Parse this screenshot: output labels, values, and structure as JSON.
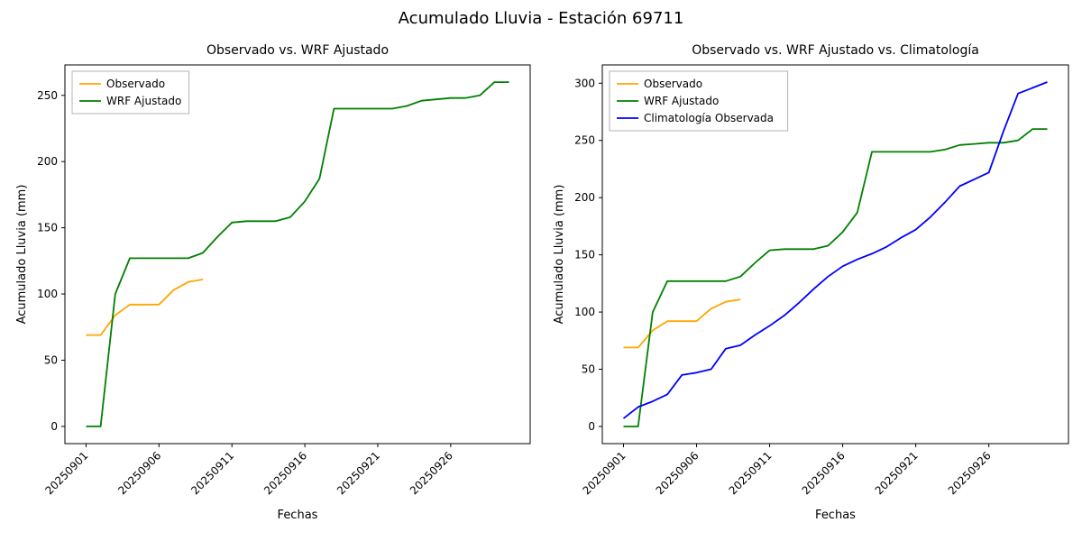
{
  "figure": {
    "title": "Acumulado Lluvia - Estación 69711"
  },
  "chart_data": [
    {
      "type": "line",
      "title": "Observado vs. WRF Ajustado",
      "xlabel": "Fechas",
      "ylabel": "Acumulado Lluvia (mm)",
      "grid": false,
      "legend_position": "upper left",
      "categories": [
        "20250901",
        "20250902",
        "20250903",
        "20250904",
        "20250905",
        "20250906",
        "20250907",
        "20250908",
        "20250909",
        "20250910",
        "20250911",
        "20250912",
        "20250913",
        "20250914",
        "20250915",
        "20250916",
        "20250917",
        "20250918",
        "20250919",
        "20250920",
        "20250921",
        "20250922",
        "20250923",
        "20250924",
        "20250925",
        "20250926",
        "20250927",
        "20250928",
        "20250929",
        "20250930"
      ],
      "xtick_indices": [
        0,
        5,
        10,
        15,
        20,
        25
      ],
      "yticks": [
        0,
        50,
        100,
        150,
        200,
        250
      ],
      "ylim": [
        -13,
        273
      ],
      "series": [
        {
          "name": "Observado",
          "color": "#FFA500",
          "values": [
            69,
            69,
            84,
            92,
            92,
            92,
            103,
            109,
            111
          ]
        },
        {
          "name": "WRF Ajustado",
          "color": "#008000",
          "values": [
            0,
            0,
            100,
            127,
            127,
            127,
            127,
            127,
            131,
            143,
            154,
            155,
            155,
            155,
            158,
            170,
            187,
            240,
            240,
            240,
            240,
            240,
            242,
            246,
            247,
            248,
            248,
            250,
            260,
            260
          ]
        }
      ]
    },
    {
      "type": "line",
      "title": "Observado vs. WRF Ajustado vs. Climatología",
      "xlabel": "Fechas",
      "ylabel": "Acumulado Lluvia (mm)",
      "grid": false,
      "legend_position": "upper left",
      "categories": [
        "20250901",
        "20250902",
        "20250903",
        "20250904",
        "20250905",
        "20250906",
        "20250907",
        "20250908",
        "20250909",
        "20250910",
        "20250911",
        "20250912",
        "20250913",
        "20250914",
        "20250915",
        "20250916",
        "20250917",
        "20250918",
        "20250919",
        "20250920",
        "20250921",
        "20250922",
        "20250923",
        "20250924",
        "20250925",
        "20250926",
        "20250927",
        "20250928",
        "20250929",
        "20250930"
      ],
      "xtick_indices": [
        0,
        5,
        10,
        15,
        20,
        25
      ],
      "yticks": [
        0,
        50,
        100,
        150,
        200,
        250,
        300
      ],
      "ylim": [
        -15,
        316
      ],
      "series": [
        {
          "name": "Observado",
          "color": "#FFA500",
          "values": [
            69,
            69,
            84,
            92,
            92,
            92,
            103,
            109,
            111
          ]
        },
        {
          "name": "WRF Ajustado",
          "color": "#008000",
          "values": [
            0,
            0,
            100,
            127,
            127,
            127,
            127,
            127,
            131,
            143,
            154,
            155,
            155,
            155,
            158,
            170,
            187,
            240,
            240,
            240,
            240,
            240,
            242,
            246,
            247,
            248,
            248,
            250,
            260,
            260
          ]
        },
        {
          "name": "Climatología Observada",
          "color": "#0000FF",
          "values": [
            7,
            17,
            22,
            28,
            45,
            47,
            50,
            68,
            71,
            80,
            88,
            97,
            108,
            120,
            131,
            140,
            146,
            151,
            157,
            165,
            172,
            183,
            196,
            210,
            216,
            222,
            258,
            291,
            296,
            301
          ]
        }
      ]
    }
  ]
}
